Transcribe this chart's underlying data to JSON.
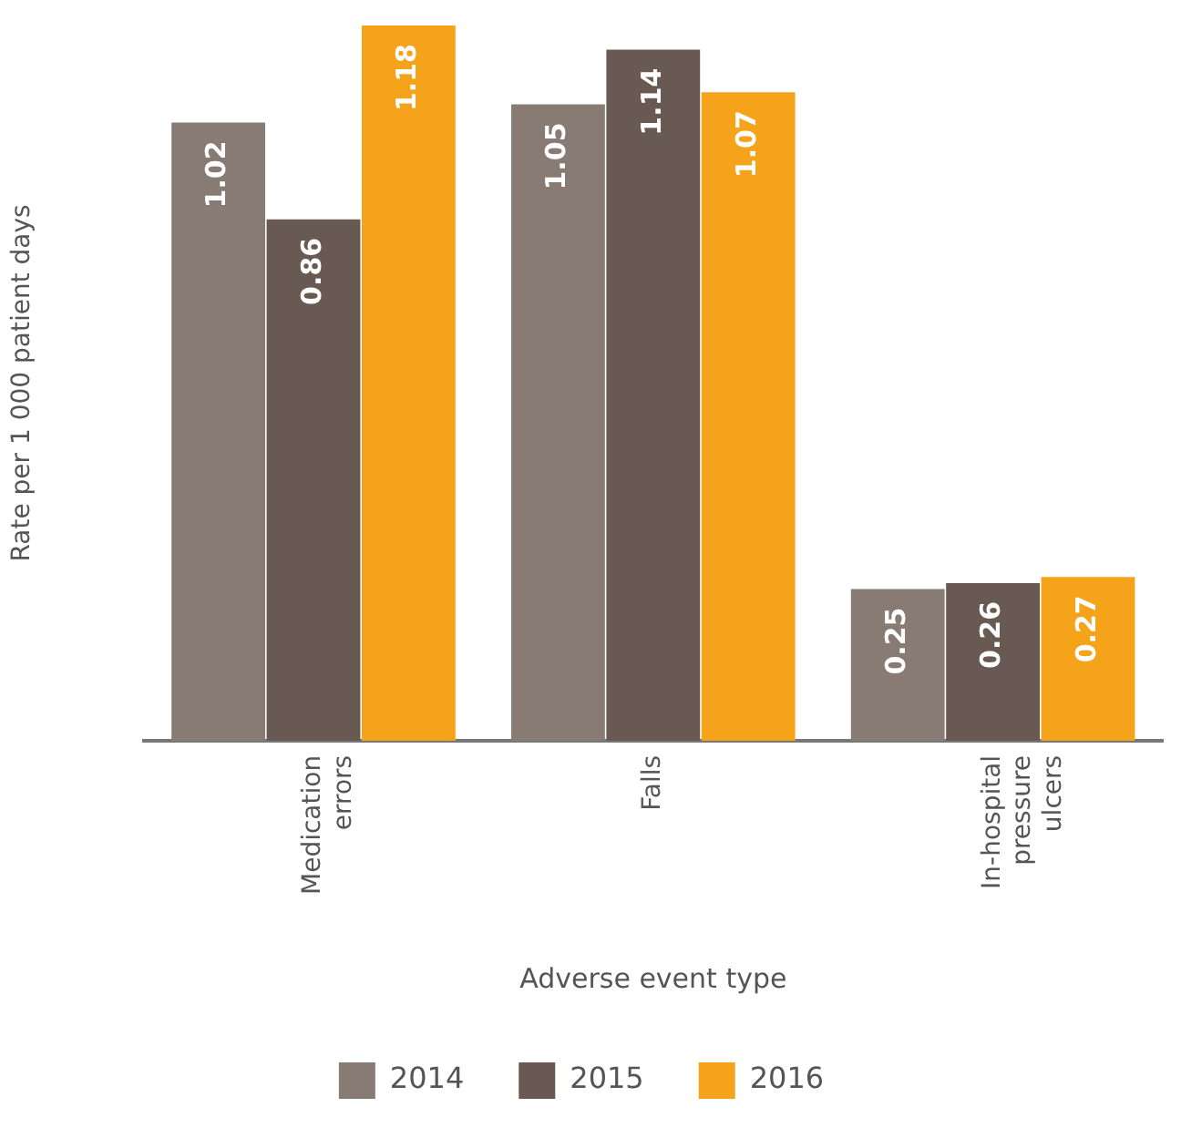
{
  "chart_data": {
    "type": "bar",
    "xlabel": "Adverse event type",
    "ylabel": "Rate per 1 000 patient days",
    "categories": [
      "Medication errors",
      "Falls",
      "In-hospital pressure ulcers"
    ],
    "series": [
      {
        "name": "2014",
        "color": "#877b74",
        "values": [
          1.02,
          1.05,
          0.25
        ]
      },
      {
        "name": "2015",
        "color": "#685a52",
        "values": [
          0.86,
          1.14,
          0.26
        ]
      },
      {
        "name": "2016",
        "color": "#f6a31c",
        "values": [
          1.18,
          1.07,
          0.27
        ]
      }
    ],
    "data_labels": true,
    "legend": "bottom",
    "grid": false
  }
}
